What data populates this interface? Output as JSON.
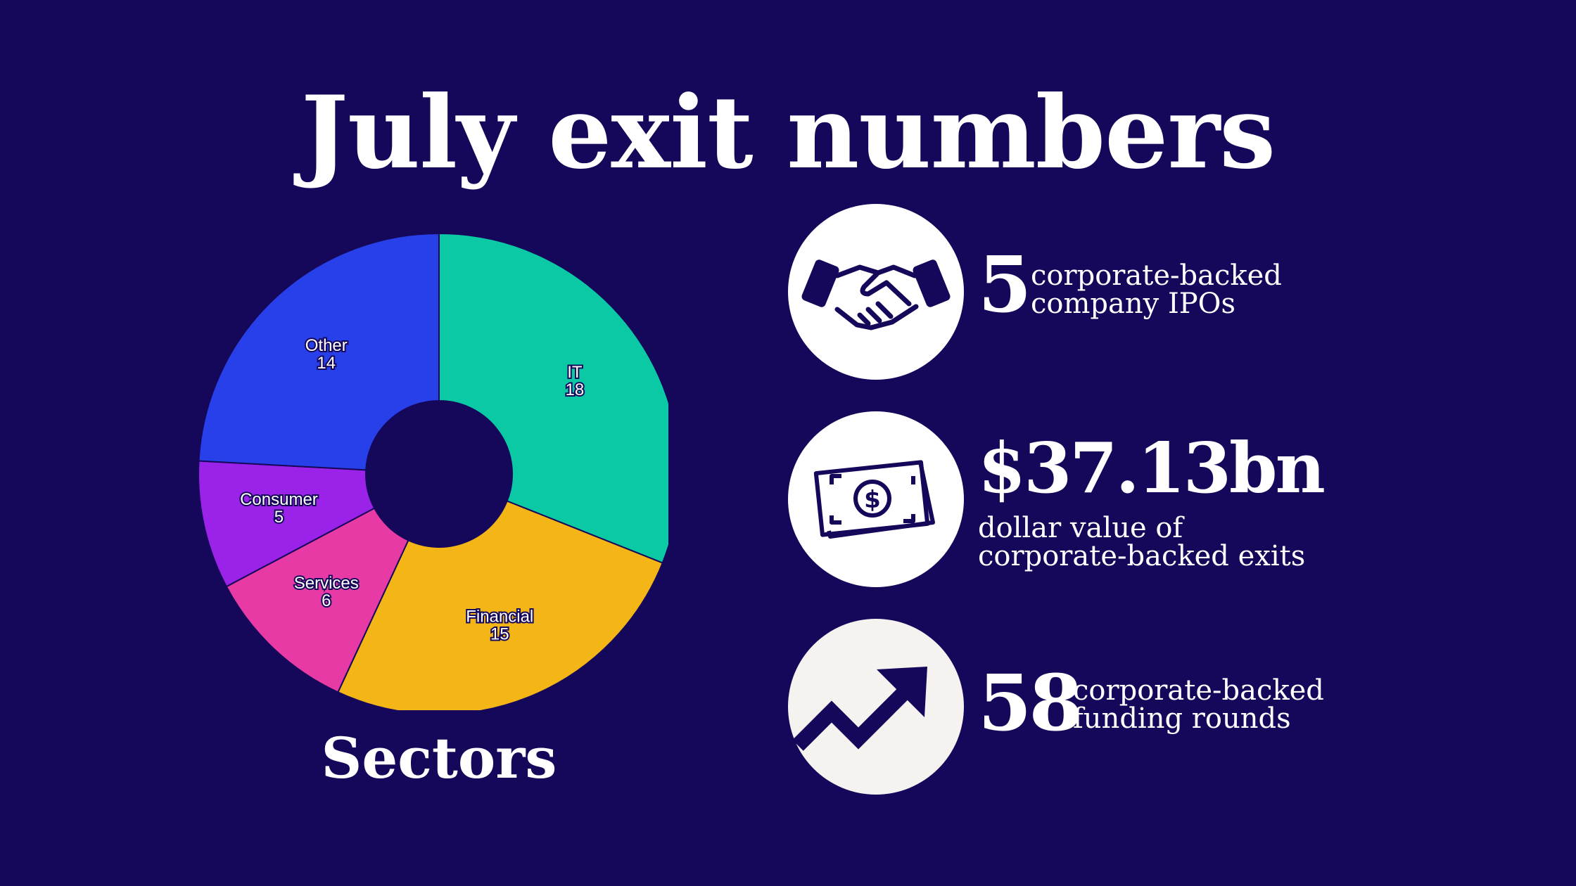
{
  "title": "July exit numbers",
  "chart_data": {
    "type": "pie",
    "xlabel": "Sectors",
    "categories": [
      "IT",
      "Financial",
      "Services",
      "Consumer",
      "Other"
    ],
    "values": [
      18,
      15,
      6,
      5,
      14
    ],
    "colors": [
      "#0bc9a5",
      "#f4b616",
      "#e83aa4",
      "#9b22e8",
      "#2840ea"
    ]
  },
  "stats": {
    "ipos": {
      "value": "5",
      "line1": "corporate-backed",
      "line2": "company IPOs",
      "icon": "handshake-icon"
    },
    "exit_value": {
      "value": "$37.13bn",
      "line1": "dollar value of",
      "line2": "corporate-backed exits",
      "icon": "money-bill-icon"
    },
    "funding": {
      "value": "58",
      "line1": "corporate-backed",
      "line2": "funding rounds",
      "icon": "trending-up-icon"
    }
  }
}
